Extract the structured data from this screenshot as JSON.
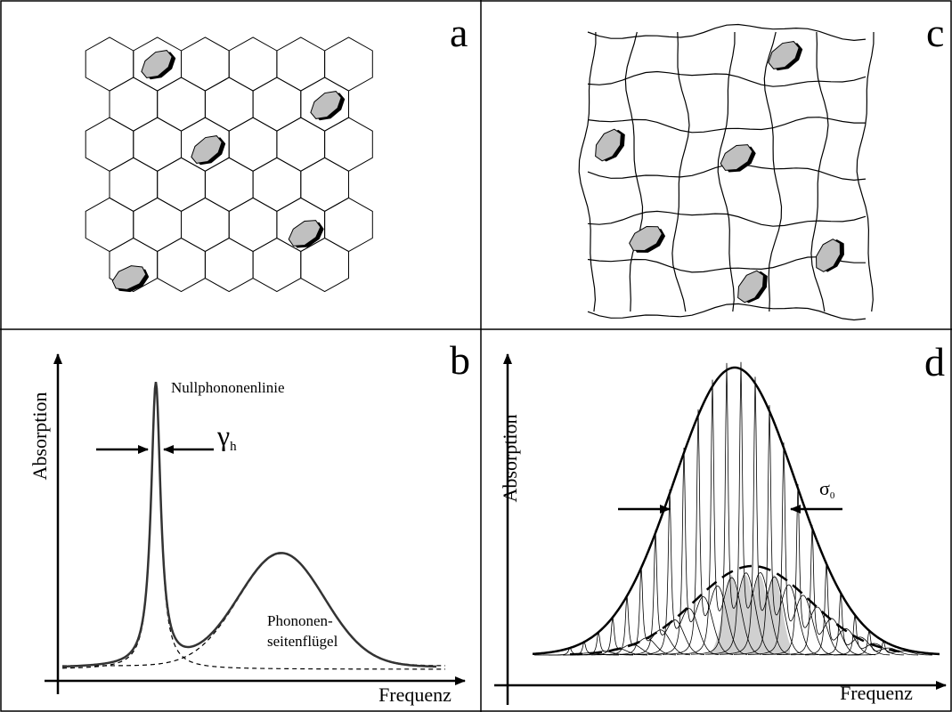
{
  "panels": {
    "a": {
      "label": "a"
    },
    "b": {
      "label": "b",
      "y_axis": "Absorption",
      "x_axis": "Frequenz",
      "peak_label": "Nullphononenlinie",
      "width_label": {
        "symbol": "γ",
        "subscript": "h"
      },
      "wing_label": [
        "Phononen-",
        "seitenflügel"
      ]
    },
    "c": {
      "label": "c"
    },
    "d": {
      "label": "d",
      "y_axis": "Absorption",
      "x_axis": "Frequenz",
      "width_label": {
        "symbol": "σ",
        "subscript": "0"
      }
    }
  }
}
